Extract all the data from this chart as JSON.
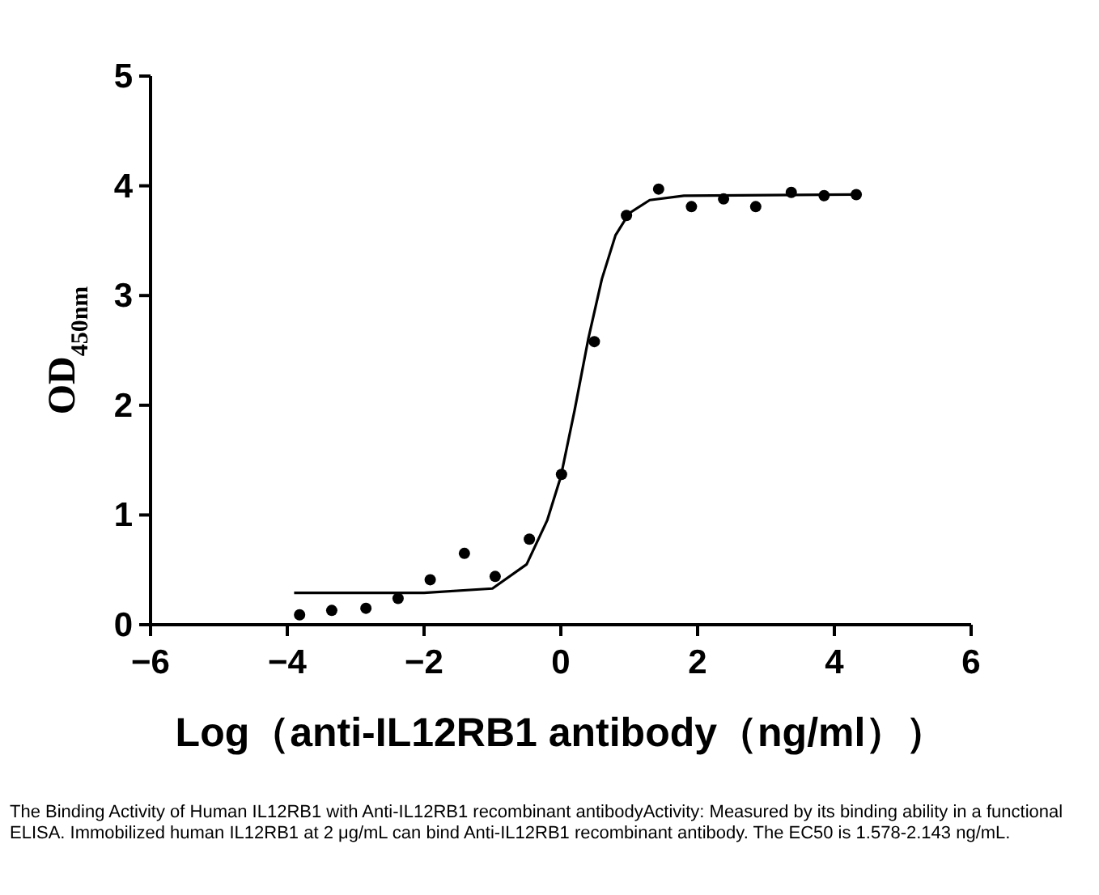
{
  "chart_data": {
    "type": "scatter",
    "xlabel": "Log（anti-IL12RB1 antibody（ng/ml））",
    "ylabel": "OD$_{450nm}$",
    "xlim": [
      -6,
      6
    ],
    "xticks": [
      -6,
      -4,
      -2,
      0,
      2,
      4,
      6
    ],
    "ylim": [
      0,
      5
    ],
    "yticks": [
      0,
      1,
      2,
      3,
      4,
      5
    ],
    "grid": false,
    "series": [
      {
        "marker": "circle",
        "color": "#000000",
        "x": [
          -3.82,
          -3.35,
          -2.85,
          -2.38,
          -1.91,
          -1.41,
          -0.96,
          -0.46,
          0.01,
          0.49,
          0.96,
          1.43,
          1.91,
          2.38,
          2.85,
          3.37,
          3.85,
          4.32
        ],
        "values": [
          0.09,
          0.13,
          0.15,
          0.24,
          0.41,
          0.65,
          0.44,
          0.78,
          1.37,
          2.58,
          3.73,
          3.97,
          3.81,
          3.88,
          3.81,
          3.94,
          3.91,
          3.92
        ]
      },
      {
        "type": "line",
        "marker": "none",
        "color": "#000000",
        "x": [
          -3.9,
          -2,
          -1,
          -0.5,
          -0.2,
          0,
          0.2,
          0.4,
          0.6,
          0.8,
          1.0,
          1.3,
          1.8,
          4.3
        ],
        "values": [
          0.29,
          0.29,
          0.33,
          0.55,
          0.95,
          1.35,
          1.95,
          2.6,
          3.15,
          3.55,
          3.75,
          3.87,
          3.91,
          3.92
        ]
      }
    ],
    "annotations": [
      "The Binding Activity of Human IL12RB1 with Anti-IL12RB1 recombinant antibodyActivity: Measured by its binding ability in a functional ELISA. Immobilized human IL12RB1 at 2 μg/mL can bind Anti-IL12RB1 recombinant antibody. The EC50 is 1.578-2.143 ng/mL."
    ]
  }
}
